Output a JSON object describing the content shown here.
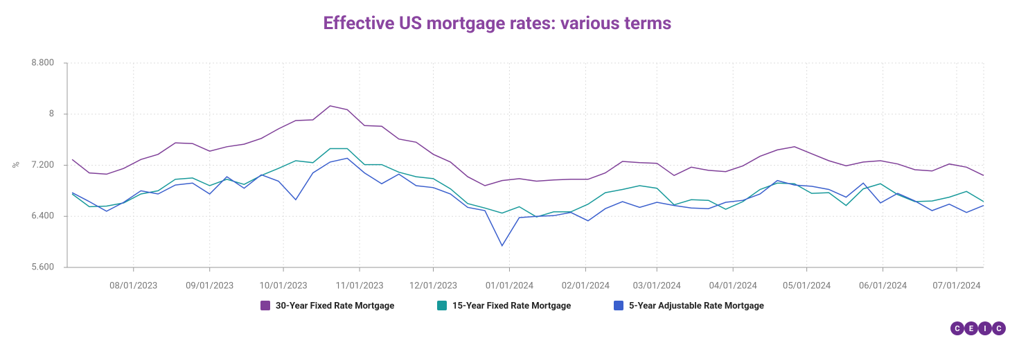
{
  "chart_data": {
    "type": "line",
    "title": "Effective US mortgage rates: various terms",
    "y_label": "%",
    "x": [
      "07/07/2023",
      "07/14/2023",
      "07/21/2023",
      "07/28/2023",
      "08/04/2023",
      "08/11/2023",
      "08/18/2023",
      "08/25/2023",
      "09/01/2023",
      "09/08/2023",
      "09/15/2023",
      "09/22/2023",
      "09/29/2023",
      "10/06/2023",
      "10/13/2023",
      "10/20/2023",
      "10/27/2023",
      "11/03/2023",
      "11/10/2023",
      "11/17/2023",
      "11/24/2023",
      "12/01/2023",
      "12/08/2023",
      "12/15/2023",
      "12/22/2023",
      "12/29/2023",
      "01/05/2024",
      "01/12/2024",
      "01/19/2024",
      "01/26/2024",
      "02/02/2024",
      "02/09/2024",
      "02/16/2024",
      "02/23/2024",
      "03/01/2024",
      "03/08/2024",
      "03/15/2024",
      "03/22/2024",
      "03/29/2024",
      "04/05/2024",
      "04/12/2024",
      "04/19/2024",
      "04/26/2024",
      "05/03/2024",
      "05/10/2024",
      "05/17/2024",
      "05/24/2024",
      "05/31/2024",
      "06/07/2024",
      "06/14/2024",
      "06/21/2024",
      "06/28/2024",
      "07/05/2024",
      "07/12/2024"
    ],
    "series": [
      {
        "name": "30-Year Fixed Rate Mortgage",
        "color": "#7f3f98",
        "values": [
          7.29,
          7.08,
          7.06,
          7.15,
          7.29,
          7.37,
          7.55,
          7.54,
          7.42,
          7.49,
          7.53,
          7.62,
          7.77,
          7.9,
          7.91,
          8.13,
          8.07,
          7.82,
          7.81,
          7.61,
          7.56,
          7.37,
          7.25,
          7.02,
          6.88,
          6.96,
          6.99,
          6.95,
          6.97,
          6.98,
          6.98,
          7.08,
          7.26,
          7.24,
          7.23,
          7.04,
          7.17,
          7.12,
          7.1,
          7.19,
          7.34,
          7.44,
          7.49,
          7.38,
          7.27,
          7.19,
          7.25,
          7.27,
          7.22,
          7.13,
          7.11,
          7.22,
          7.17,
          7.04
        ]
      },
      {
        "name": "15-Year Fixed Rate Mortgage",
        "color": "#17999a",
        "values": [
          6.75,
          6.55,
          6.56,
          6.61,
          6.75,
          6.8,
          6.98,
          7.0,
          6.88,
          6.98,
          6.9,
          7.04,
          7.15,
          7.27,
          7.24,
          7.46,
          7.46,
          7.21,
          7.21,
          7.09,
          7.02,
          6.99,
          6.83,
          6.6,
          6.53,
          6.45,
          6.55,
          6.39,
          6.47,
          6.47,
          6.59,
          6.77,
          6.82,
          6.88,
          6.84,
          6.58,
          6.66,
          6.65,
          6.51,
          6.63,
          6.82,
          6.92,
          6.91,
          6.76,
          6.77,
          6.57,
          6.83,
          6.91,
          6.74,
          6.63,
          6.64,
          6.7,
          6.79,
          6.63
        ]
      },
      {
        "name": "5-Year Adjustable Rate Mortgage",
        "color": "#3a5fcd",
        "values": [
          6.77,
          6.63,
          6.48,
          6.62,
          6.8,
          6.75,
          6.89,
          6.92,
          6.75,
          7.02,
          6.84,
          7.05,
          6.95,
          6.66,
          7.08,
          7.25,
          7.31,
          7.08,
          6.91,
          7.06,
          6.88,
          6.85,
          6.75,
          6.54,
          6.49,
          5.94,
          6.38,
          6.4,
          6.41,
          6.46,
          6.33,
          6.52,
          6.63,
          6.54,
          6.62,
          6.57,
          6.53,
          6.52,
          6.62,
          6.65,
          6.75,
          6.96,
          6.89,
          6.87,
          6.82,
          6.7,
          6.92,
          6.61,
          6.76,
          6.64,
          6.49,
          6.59,
          6.46,
          6.57
        ]
      }
    ],
    "xlim": [
      "07/05/2023",
      "07/12/2024"
    ],
    "xticks": [
      "08/01/2023",
      "09/01/2023",
      "10/01/2023",
      "11/01/2023",
      "12/01/2023",
      "01/01/2024",
      "02/01/2024",
      "03/01/2024",
      "04/01/2024",
      "05/01/2024",
      "06/01/2024",
      "07/01/2024"
    ],
    "ylim": [
      5.6,
      8.8
    ],
    "yticks": [
      {
        "value": 5.6,
        "label": "5.600"
      },
      {
        "value": 6.4,
        "label": "6.400"
      },
      {
        "value": 7.2,
        "label": "7.200"
      },
      8,
      {
        "value": 8.8,
        "label": "8.800"
      }
    ],
    "grid": true,
    "legend": "bottom",
    "logo": [
      "C",
      "E",
      "I",
      "C"
    ]
  }
}
